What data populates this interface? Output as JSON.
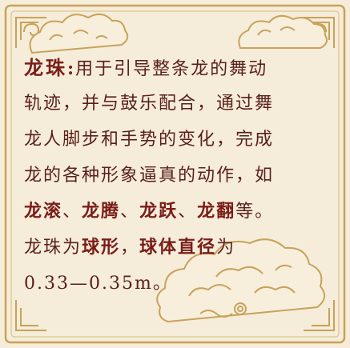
{
  "card": {
    "title": "龙珠",
    "colon": ":",
    "lines": [
      [
        {
          "t": "用于引导整条龙的舞动",
          "b": false
        }
      ],
      [
        {
          "t": "轨迹，并与鼓乐配合，通过舞",
          "b": false
        }
      ],
      [
        {
          "t": "龙人脚步和手势的变化，完成",
          "b": false
        }
      ],
      [
        {
          "t": "龙的各种形象逼真的动作，如",
          "b": false
        }
      ],
      [
        {
          "t": "龙滚",
          "b": true
        },
        {
          "t": "、",
          "b": false
        },
        {
          "t": "龙腾",
          "b": true
        },
        {
          "t": "、",
          "b": false
        },
        {
          "t": "龙跃",
          "b": true
        },
        {
          "t": "、",
          "b": false
        },
        {
          "t": "龙翻",
          "b": true
        },
        {
          "t": "等。",
          "b": false
        }
      ],
      [
        {
          "t": "龙珠为",
          "b": false
        },
        {
          "t": "球形",
          "b": true
        },
        {
          "t": "，",
          "b": false
        },
        {
          "t": "球体直径",
          "b": true
        },
        {
          "t": "为",
          "b": false
        }
      ],
      [
        {
          "t": "0.33—0.35m。",
          "b": false
        }
      ]
    ]
  },
  "colors": {
    "background": "#f5edd9",
    "border": "#c8a25a",
    "text": "#5a1f1a",
    "emphasis": "#7a1d19"
  },
  "icons": [
    "cloud-ornament-icon",
    "corner-ornament-icon"
  ]
}
